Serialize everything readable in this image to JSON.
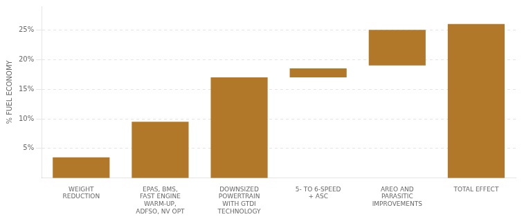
{
  "chart_data": {
    "type": "bar",
    "categories": [
      "WEIGHT\nREDUCTION",
      "EPAS, BMS,\nFAST ENGINE\nWARM-UP,\nADFSO, NV OPT",
      "DOWNSIZED\nPOWERTRAIN\nWITH GTDI\nTECHNOLOGY",
      "5- TO 6-SPEED\n+ ASC",
      "AREO AND\nPARASITIC\nIMPROVEMENTS",
      "TOTAL EFFECT"
    ],
    "values": [
      3.5,
      9.5,
      17.0,
      1.5,
      6.0,
      26.0
    ],
    "bar_bottoms": [
      0,
      0,
      0,
      17.0,
      19.0,
      0
    ],
    "ylabel": "% FUEL ECONOMY",
    "color": "#b07828",
    "ylim": [
      0,
      29
    ],
    "yticks": [
      {
        "value": 5,
        "label": "5%"
      },
      {
        "value": 10,
        "label": "10%"
      },
      {
        "value": 15,
        "label": "15%"
      },
      {
        "value": 20,
        "label": "20%"
      },
      {
        "value": 25,
        "label": "25%"
      }
    ],
    "grid": true
  }
}
